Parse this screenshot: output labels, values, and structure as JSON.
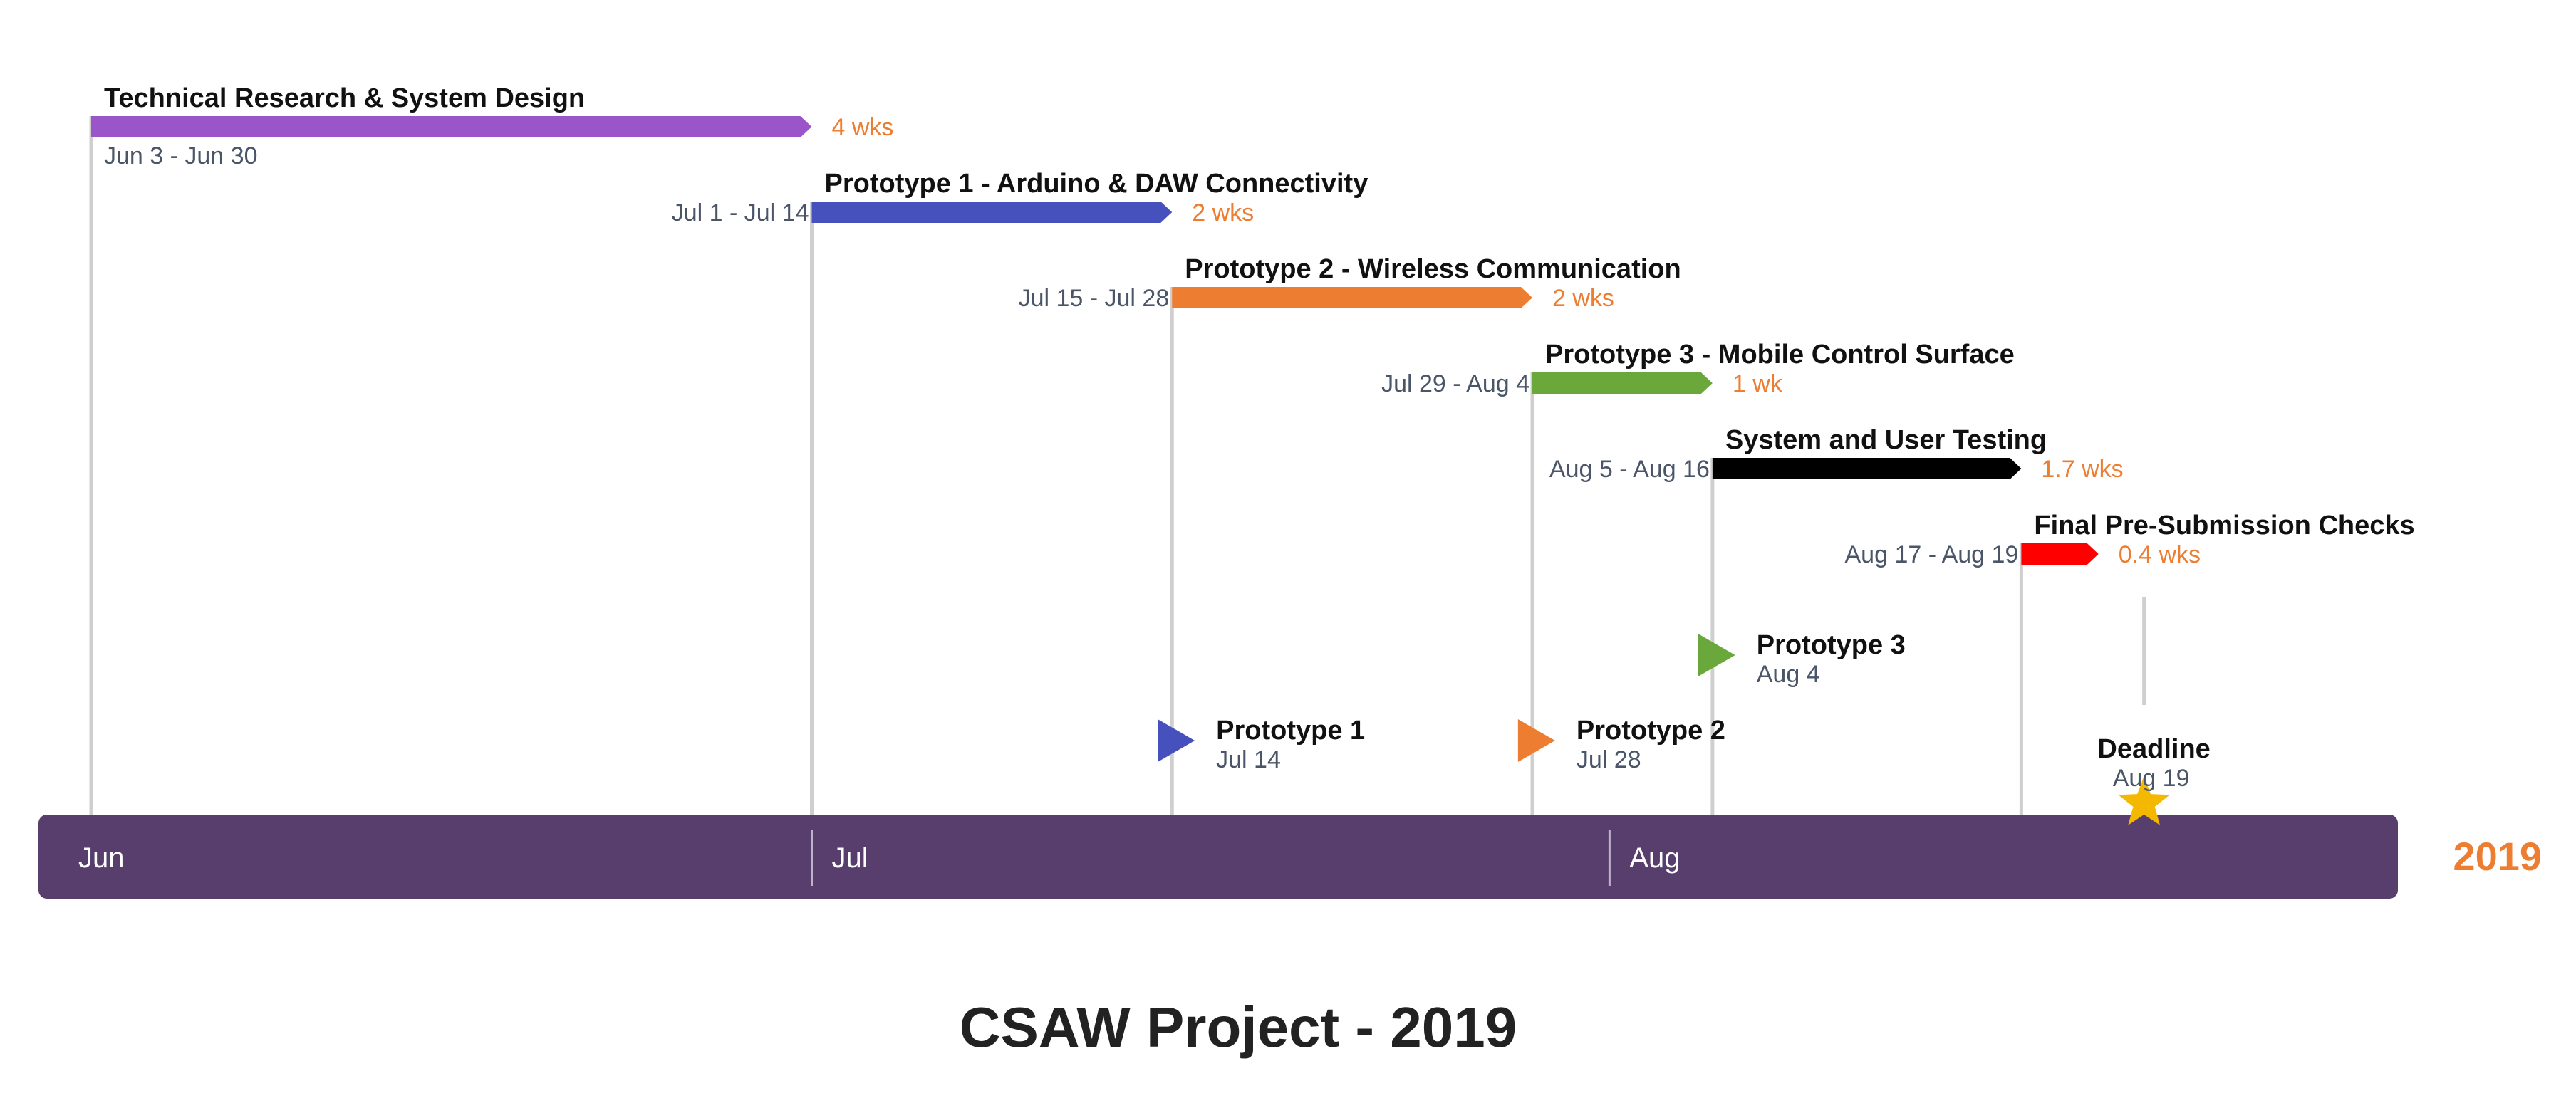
{
  "chart_data": {
    "type": "gantt",
    "title": "CSAW Project - 2019",
    "year": "2019",
    "months": [
      "Jun",
      "Jul",
      "Aug"
    ],
    "colors": {
      "timeline_band": "#583e6c",
      "duration_text": "#ed7d31",
      "year_text": "#ed7d31",
      "connector": "#cfcfcf",
      "deadline_star": "#f5b800"
    },
    "tasks": [
      {
        "name": "Technical Research & System Design",
        "start": "2019-06-03",
        "end": "2019-06-30",
        "dates_label": "Jun 3 - Jun 30",
        "duration_label": "4 wks",
        "color": "#9a55c9"
      },
      {
        "name": "Prototype 1 - Arduino & DAW Connectivity",
        "start": "2019-07-01",
        "end": "2019-07-14",
        "dates_label": "Jul 1 - Jul 14",
        "duration_label": "2 wks",
        "color": "#4651bd"
      },
      {
        "name": "Prototype 2 - Wireless Communication",
        "start": "2019-07-15",
        "end": "2019-07-28",
        "dates_label": "Jul 15 - Jul 28",
        "duration_label": "2 wks",
        "color": "#ed7d31"
      },
      {
        "name": "Prototype 3 - Mobile Control Surface",
        "start": "2019-07-29",
        "end": "2019-08-04",
        "dates_label": "Jul 29 - Aug 4",
        "duration_label": "1 wk",
        "color": "#6aa83c"
      },
      {
        "name": "System and User Testing",
        "start": "2019-08-05",
        "end": "2019-08-16",
        "dates_label": "Aug 5 - Aug 16",
        "duration_label": "1.7 wks",
        "color": "#000000"
      },
      {
        "name": "Final Pre-Submission Checks",
        "start": "2019-08-17",
        "end": "2019-08-19",
        "dates_label": "Aug 17 - Aug 19",
        "duration_label": "0.4 wks",
        "color": "#ff0000"
      }
    ],
    "milestones": [
      {
        "name": "Prototype 1",
        "date": "2019-07-14",
        "date_label": "Jul 14",
        "color": "#4651bd",
        "shape": "triangle"
      },
      {
        "name": "Prototype 2",
        "date": "2019-07-28",
        "date_label": "Jul 28",
        "color": "#ed7d31",
        "shape": "triangle"
      },
      {
        "name": "Prototype 3",
        "date": "2019-08-04",
        "date_label": "Aug 4",
        "color": "#6aa83c",
        "shape": "triangle"
      },
      {
        "name": "Deadline",
        "date": "2019-08-19",
        "date_label": "Aug 19",
        "color": "#f5b800",
        "shape": "star"
      }
    ]
  }
}
